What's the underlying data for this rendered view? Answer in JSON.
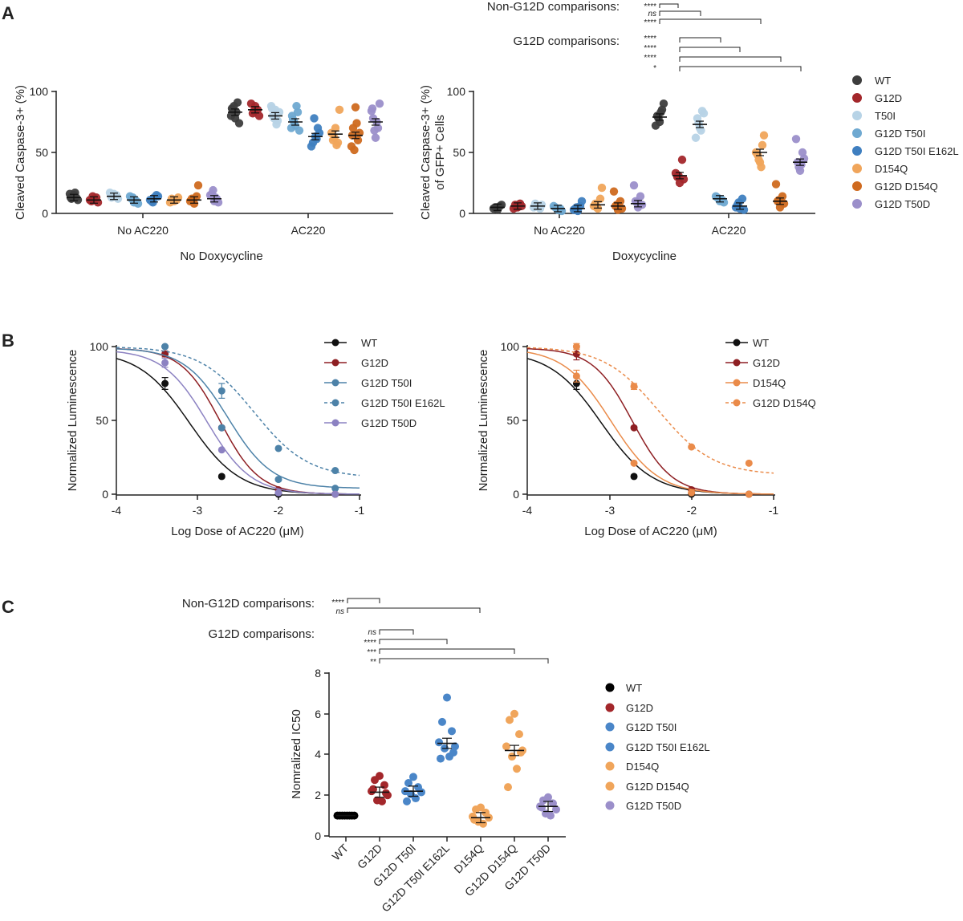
{
  "panels": {
    "A": "A",
    "B": "B",
    "C": "C"
  },
  "palette": {
    "WT_A": "#3d3d3d",
    "WT": "#111111",
    "G12D": "#a3272b",
    "T50I": "#b7d3e6",
    "G12D T50I": "#6fa9d1",
    "G12D T50I E162L": "#3f7fc0",
    "D154Q": "#f0a55b",
    "G12D D154Q": "#cf6a1f",
    "G12D T50D": "#9b8fca",
    "WT_B": "#111111",
    "G12D_B": "#8e1f23",
    "G12D T50I_B": "#4d82a8",
    "G12D T50I E162L_B": "#4d82a8",
    "G12D T50D_B": "#8c82c2",
    "D154Q_B": "#ea8b4a",
    "G12D D154Q_B": "#ea8b4a",
    "C_WT": "#000000",
    "C_G12D": "#a3272b",
    "C_blue": "#4a86c8",
    "C_orange": "#f0a55b",
    "C_purple": "#9b8fca"
  },
  "chart_data": [
    {
      "id": "A-left",
      "type": "scatter",
      "title": "",
      "xlabel": "No Doxycycline",
      "ylabel": "Cleaved Caspase-3+ (%)",
      "ylim": [
        0,
        100
      ],
      "yticks": [
        0,
        50,
        100
      ],
      "groups": [
        "No AC220",
        "AC220"
      ],
      "series_names": [
        "WT",
        "G12D",
        "T50I",
        "G12D T50I",
        "G12D T50I E162L",
        "D154Q",
        "G12D D154Q",
        "G12D T50D"
      ],
      "means": [
        [
          13,
          11,
          14,
          11,
          12,
          11,
          11,
          12
        ],
        [
          83,
          85,
          80,
          75,
          63,
          65,
          64,
          75
        ]
      ],
      "points": [
        [
          [
            15,
            12,
            13,
            16,
            11,
            14,
            17,
            13
          ],
          [
            12,
            10,
            13,
            11,
            9,
            14
          ],
          [
            16,
            13,
            15,
            17,
            12,
            14
          ],
          [
            9,
            12,
            10,
            14,
            8,
            13,
            11
          ],
          [
            13,
            10,
            15,
            11,
            14,
            9
          ],
          [
            10,
            12,
            11,
            9,
            13
          ],
          [
            8,
            12,
            14,
            10,
            23,
            11
          ],
          [
            10,
            16,
            12,
            15,
            9,
            19,
            13
          ]
        ],
        [
          [
            78,
            85,
            91,
            80,
            74,
            88,
            83,
            86
          ],
          [
            88,
            82,
            85,
            90,
            80,
            84
          ],
          [
            85,
            80,
            76,
            88,
            83,
            78,
            73,
            86
          ],
          [
            72,
            77,
            83,
            70,
            68,
            75,
            88,
            80
          ],
          [
            63,
            58,
            70,
            55,
            66,
            78,
            61
          ],
          [
            70,
            60,
            58,
            66,
            85,
            62,
            56
          ],
          [
            87,
            70,
            60,
            55,
            66,
            52,
            74,
            64
          ],
          [
            62,
            78,
            70,
            84,
            90,
            68,
            75,
            86
          ]
        ]
      ]
    },
    {
      "id": "A-right",
      "type": "scatter",
      "title": "",
      "xlabel": "Doxycycline",
      "ylabel": "Cleaved Caspase-3+ (%) of GFP+ Cells",
      "ylim": [
        0,
        100
      ],
      "yticks": [
        0,
        50,
        100
      ],
      "groups": [
        "No AC220",
        "AC220"
      ],
      "series_names": [
        "WT",
        "G12D",
        "T50I",
        "G12D T50I",
        "G12D T50I E162L",
        "D154Q",
        "G12D D154Q",
        "G12D T50D"
      ],
      "means": [
        [
          5,
          6,
          6,
          4,
          4,
          7,
          6,
          8
        ],
        [
          79,
          31,
          73,
          12,
          6,
          50,
          10,
          42
        ]
      ],
      "points": [
        [
          [
            3,
            5,
            6,
            4,
            7,
            5
          ],
          [
            5,
            7,
            8,
            4,
            6,
            5
          ],
          [
            6,
            8,
            4,
            5,
            7
          ],
          [
            3,
            5,
            4,
            6,
            2
          ],
          [
            2,
            4,
            6,
            3,
            10,
            5
          ],
          [
            4,
            8,
            12,
            6,
            21,
            5
          ],
          [
            3,
            6,
            10,
            18,
            4,
            7
          ],
          [
            5,
            10,
            14,
            23,
            7,
            9
          ]
        ],
        [
          [
            75,
            80,
            85,
            72,
            90,
            78,
            83
          ],
          [
            25,
            30,
            44,
            33,
            28,
            31
          ],
          [
            70,
            78,
            84,
            62,
            82,
            74,
            68
          ],
          [
            10,
            13,
            11,
            14,
            9,
            12
          ],
          [
            4,
            7,
            12,
            5,
            3,
            9
          ],
          [
            42,
            48,
            56,
            50,
            64,
            44,
            38
          ],
          [
            5,
            10,
            14,
            24,
            8,
            11
          ],
          [
            35,
            42,
            50,
            61,
            45,
            38,
            40
          ]
        ]
      ]
    },
    {
      "id": "B-left",
      "type": "line",
      "title": "",
      "xlabel": "Log Dose of AC220 (μM)",
      "ylabel": "Normalized Luminescence",
      "xlim": [
        -4,
        -1
      ],
      "ylim": [
        0,
        100
      ],
      "xticks": [
        -4,
        -3,
        -2,
        -1
      ],
      "yticks": [
        0,
        50,
        100
      ],
      "series": [
        {
          "name": "WT",
          "dashed": false,
          "x": [
            -3.4,
            -2.7,
            -2.0,
            -1.3
          ],
          "y": [
            75,
            12,
            0,
            0
          ],
          "err": [
            4,
            1,
            0,
            0
          ],
          "fit": {
            "top": 97,
            "bottom": 0,
            "ic50": -3.1,
            "hill": 1.4
          }
        },
        {
          "name": "G12D",
          "dashed": false,
          "x": [
            -3.4,
            -2.7,
            -2.0,
            -1.3
          ],
          "y": [
            95,
            45,
            3,
            0
          ],
          "err": [
            2,
            1,
            0,
            0
          ],
          "fit": {
            "top": 99,
            "bottom": 0,
            "ic50": -2.72,
            "hill": 1.8
          }
        },
        {
          "name": "G12D T50I",
          "dashed": false,
          "x": [
            -3.4,
            -2.7,
            -2.0,
            -1.3
          ],
          "y": [
            100,
            45,
            10,
            4
          ],
          "err": [
            0,
            0,
            0,
            0
          ],
          "fit": {
            "top": 99,
            "bottom": 4,
            "ic50": -2.62,
            "hill": 1.6
          }
        },
        {
          "name": "G12D T50I E162L",
          "dashed": true,
          "x": [
            -3.4,
            -2.7,
            -2.0,
            -1.3
          ],
          "y": [
            100,
            70,
            31,
            16
          ],
          "err": [
            0,
            5,
            0,
            0
          ],
          "fit": {
            "top": 100,
            "bottom": 11,
            "ic50": -2.3,
            "hill": 1.3
          }
        },
        {
          "name": "G12D T50D",
          "dashed": false,
          "x": [
            -3.4,
            -2.7,
            -2.0,
            -1.3
          ],
          "y": [
            89,
            30,
            1,
            0
          ],
          "err": [
            3,
            0,
            0,
            0
          ],
          "fit": {
            "top": 98,
            "bottom": 0,
            "ic50": -2.88,
            "hill": 1.6
          }
        }
      ]
    },
    {
      "id": "B-right",
      "type": "line",
      "title": "",
      "xlabel": "Log Dose of AC220 (μM)",
      "ylabel": "Normalized Luminescence",
      "xlim": [
        -4,
        -1
      ],
      "ylim": [
        0,
        100
      ],
      "xticks": [
        -4,
        -3,
        -2,
        -1
      ],
      "yticks": [
        0,
        50,
        100
      ],
      "series": [
        {
          "name": "WT",
          "dashed": false,
          "x": [
            -3.4,
            -2.7,
            -2.0,
            -1.3
          ],
          "y": [
            75,
            12,
            0,
            0
          ],
          "err": [
            4,
            1,
            0,
            0
          ],
          "fit": {
            "top": 97,
            "bottom": 0,
            "ic50": -3.1,
            "hill": 1.4
          }
        },
        {
          "name": "G12D",
          "dashed": false,
          "x": [
            -3.4,
            -2.7,
            -2.0,
            -1.3
          ],
          "y": [
            95,
            45,
            3,
            0
          ],
          "err": [
            4,
            0,
            0,
            0
          ],
          "fit": {
            "top": 99,
            "bottom": 0,
            "ic50": -2.72,
            "hill": 1.8
          }
        },
        {
          "name": "D154Q",
          "dashed": false,
          "x": [
            -3.4,
            -2.7,
            -2.0,
            -1.3
          ],
          "y": [
            80,
            21,
            1,
            0
          ],
          "err": [
            4,
            0,
            0,
            0
          ],
          "fit": {
            "top": 99,
            "bottom": 0,
            "ic50": -2.98,
            "hill": 1.5
          }
        },
        {
          "name": "G12D D154Q",
          "dashed": true,
          "x": [
            -3.4,
            -2.7,
            -2.0,
            -1.3
          ],
          "y": [
            100,
            73,
            32,
            21
          ],
          "err": [
            2,
            2,
            0,
            0
          ],
          "fit": {
            "top": 100,
            "bottom": 13,
            "ic50": -2.4,
            "hill": 1.3
          }
        }
      ]
    },
    {
      "id": "C",
      "type": "scatter",
      "title": "",
      "xlabel": "",
      "ylabel": "Nomralized IC50",
      "ylim": [
        0,
        8
      ],
      "yticks": [
        0,
        2,
        4,
        6,
        8
      ],
      "categories": [
        "WT",
        "G12D",
        "G12D T50I",
        "G12D T50I E162L",
        "D154Q",
        "G12D D154Q",
        "G12D T50D"
      ],
      "means": [
        1.0,
        2.15,
        2.2,
        4.55,
        0.9,
        4.2,
        1.45
      ],
      "points": [
        [
          1,
          1,
          1,
          1,
          1,
          1,
          1,
          1
        ],
        [
          2.95,
          2.75,
          2.5,
          2.2,
          2.0,
          1.75,
          1.7,
          2.3,
          2.1
        ],
        [
          2.9,
          2.6,
          2.4,
          2.2,
          2.15,
          2.05,
          1.85,
          1.7
        ],
        [
          6.8,
          5.6,
          5.15,
          4.6,
          4.4,
          4.3,
          3.9,
          3.8,
          4.1
        ],
        [
          1.4,
          1.3,
          1.15,
          0.95,
          0.9,
          0.7,
          0.6,
          0.8
        ],
        [
          6.0,
          5.7,
          5.0,
          4.4,
          4.2,
          3.9,
          3.3,
          2.4,
          4.1
        ],
        [
          1.9,
          1.75,
          1.6,
          1.45,
          1.3,
          1.1,
          1.0,
          1.4
        ]
      ]
    }
  ],
  "A": {
    "nonG12D_label": "Non-G12D comparisons:",
    "G12D_label": "G12D comparisons:",
    "nonG12D_stars": [
      "****",
      "ns",
      "****"
    ],
    "G12D_stars": [
      "****",
      "****",
      "****",
      "*"
    ],
    "tick_no_ac220": "No AC220",
    "tick_ac220": "AC220",
    "ylabel_right_1": "Cleaved Caspase-3+ (%)",
    "ylabel_right_2": "of GFP+ Cells",
    "legend": [
      "WT",
      "G12D",
      "T50I",
      "G12D T50I",
      "G12D T50I E162L",
      "D154Q",
      "G12D D154Q",
      "G12D T50D"
    ]
  },
  "C": {
    "nonG12D_label": "Non-G12D comparisons:",
    "G12D_label": "G12D comparisons:",
    "nonG12D_stars": [
      "****",
      "ns"
    ],
    "G12D_stars": [
      "ns",
      "****",
      "***",
      "**"
    ],
    "legend": [
      "WT",
      "G12D",
      "G12D T50I",
      "G12D T50I E162L",
      "D154Q",
      "G12D D154Q",
      "G12D T50D"
    ]
  }
}
